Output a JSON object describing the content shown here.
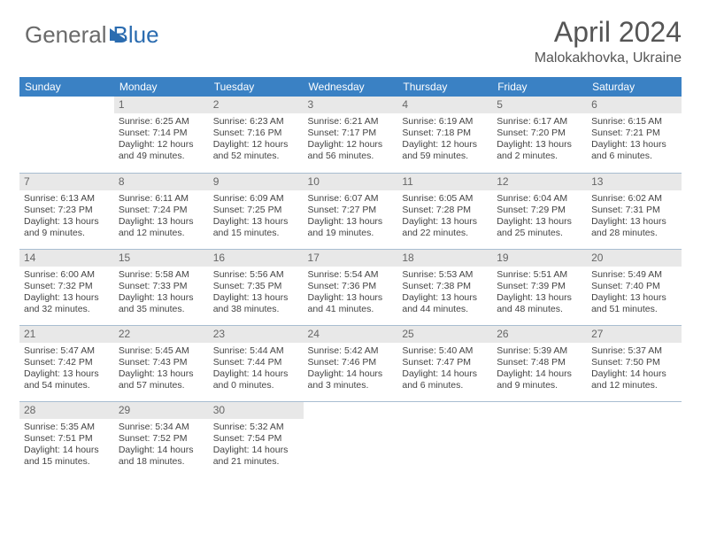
{
  "logo": {
    "text1": "General",
    "text2": "Blue"
  },
  "header": {
    "title": "April 2024",
    "location": "Malokakhovka, Ukraine"
  },
  "colors": {
    "header_bg": "#3a81c4",
    "header_text": "#ffffff",
    "daynum_bg": "#e8e8e8",
    "row_divider": "#a8bdd1",
    "text": "#444444",
    "title_text": "#555555",
    "logo_gray": "#6a6a6a",
    "logo_blue": "#2b6cb0"
  },
  "weekdays": [
    "Sunday",
    "Monday",
    "Tuesday",
    "Wednesday",
    "Thursday",
    "Friday",
    "Saturday"
  ],
  "cells": [
    {
      "blank": true
    },
    {
      "n": "1",
      "sr": "6:25 AM",
      "ss": "7:14 PM",
      "dl": "12 hours and 49 minutes."
    },
    {
      "n": "2",
      "sr": "6:23 AM",
      "ss": "7:16 PM",
      "dl": "12 hours and 52 minutes."
    },
    {
      "n": "3",
      "sr": "6:21 AM",
      "ss": "7:17 PM",
      "dl": "12 hours and 56 minutes."
    },
    {
      "n": "4",
      "sr": "6:19 AM",
      "ss": "7:18 PM",
      "dl": "12 hours and 59 minutes."
    },
    {
      "n": "5",
      "sr": "6:17 AM",
      "ss": "7:20 PM",
      "dl": "13 hours and 2 minutes."
    },
    {
      "n": "6",
      "sr": "6:15 AM",
      "ss": "7:21 PM",
      "dl": "13 hours and 6 minutes."
    },
    {
      "n": "7",
      "sr": "6:13 AM",
      "ss": "7:23 PM",
      "dl": "13 hours and 9 minutes."
    },
    {
      "n": "8",
      "sr": "6:11 AM",
      "ss": "7:24 PM",
      "dl": "13 hours and 12 minutes."
    },
    {
      "n": "9",
      "sr": "6:09 AM",
      "ss": "7:25 PM",
      "dl": "13 hours and 15 minutes."
    },
    {
      "n": "10",
      "sr": "6:07 AM",
      "ss": "7:27 PM",
      "dl": "13 hours and 19 minutes."
    },
    {
      "n": "11",
      "sr": "6:05 AM",
      "ss": "7:28 PM",
      "dl": "13 hours and 22 minutes."
    },
    {
      "n": "12",
      "sr": "6:04 AM",
      "ss": "7:29 PM",
      "dl": "13 hours and 25 minutes."
    },
    {
      "n": "13",
      "sr": "6:02 AM",
      "ss": "7:31 PM",
      "dl": "13 hours and 28 minutes."
    },
    {
      "n": "14",
      "sr": "6:00 AM",
      "ss": "7:32 PM",
      "dl": "13 hours and 32 minutes."
    },
    {
      "n": "15",
      "sr": "5:58 AM",
      "ss": "7:33 PM",
      "dl": "13 hours and 35 minutes."
    },
    {
      "n": "16",
      "sr": "5:56 AM",
      "ss": "7:35 PM",
      "dl": "13 hours and 38 minutes."
    },
    {
      "n": "17",
      "sr": "5:54 AM",
      "ss": "7:36 PM",
      "dl": "13 hours and 41 minutes."
    },
    {
      "n": "18",
      "sr": "5:53 AM",
      "ss": "7:38 PM",
      "dl": "13 hours and 44 minutes."
    },
    {
      "n": "19",
      "sr": "5:51 AM",
      "ss": "7:39 PM",
      "dl": "13 hours and 48 minutes."
    },
    {
      "n": "20",
      "sr": "5:49 AM",
      "ss": "7:40 PM",
      "dl": "13 hours and 51 minutes."
    },
    {
      "n": "21",
      "sr": "5:47 AM",
      "ss": "7:42 PM",
      "dl": "13 hours and 54 minutes."
    },
    {
      "n": "22",
      "sr": "5:45 AM",
      "ss": "7:43 PM",
      "dl": "13 hours and 57 minutes."
    },
    {
      "n": "23",
      "sr": "5:44 AM",
      "ss": "7:44 PM",
      "dl": "14 hours and 0 minutes."
    },
    {
      "n": "24",
      "sr": "5:42 AM",
      "ss": "7:46 PM",
      "dl": "14 hours and 3 minutes."
    },
    {
      "n": "25",
      "sr": "5:40 AM",
      "ss": "7:47 PM",
      "dl": "14 hours and 6 minutes."
    },
    {
      "n": "26",
      "sr": "5:39 AM",
      "ss": "7:48 PM",
      "dl": "14 hours and 9 minutes."
    },
    {
      "n": "27",
      "sr": "5:37 AM",
      "ss": "7:50 PM",
      "dl": "14 hours and 12 minutes."
    },
    {
      "n": "28",
      "sr": "5:35 AM",
      "ss": "7:51 PM",
      "dl": "14 hours and 15 minutes."
    },
    {
      "n": "29",
      "sr": "5:34 AM",
      "ss": "7:52 PM",
      "dl": "14 hours and 18 minutes."
    },
    {
      "n": "30",
      "sr": "5:32 AM",
      "ss": "7:54 PM",
      "dl": "14 hours and 21 minutes."
    },
    {
      "blank": true
    },
    {
      "blank": true
    },
    {
      "blank": true
    },
    {
      "blank": true
    }
  ],
  "labels": {
    "sunrise": "Sunrise:",
    "sunset": "Sunset:",
    "daylight": "Daylight:"
  }
}
